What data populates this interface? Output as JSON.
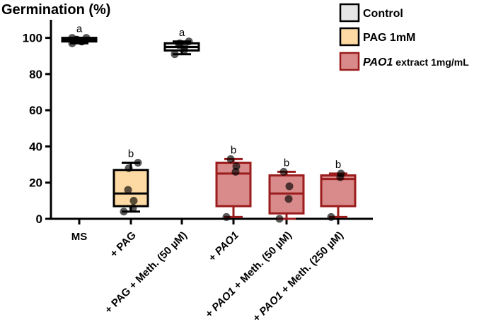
{
  "chart_data": {
    "type": "box",
    "ylabel": "Germination (%)",
    "ylim": [
      0,
      110
    ],
    "yticks": [
      0,
      20,
      40,
      60,
      80,
      100
    ],
    "categories": [
      {
        "label": "MS",
        "italic": ""
      },
      {
        "label": "+ PAG",
        "italic": ""
      },
      {
        "label": "+ PAG + Meth. (50 µM)",
        "italic": ""
      },
      {
        "label": "",
        "prefix": "+ ",
        "italic": "PAO1",
        "suffix": ""
      },
      {
        "label": "",
        "prefix": "+ ",
        "italic": "PAO1",
        "suffix": " + Meth. (50 µM)"
      },
      {
        "label": "",
        "prefix": "+ ",
        "italic": "PAO1",
        "suffix": " + Meth. (250 µM)"
      }
    ],
    "series": [
      {
        "name": "Control",
        "color": "#e6e6e6",
        "edge": "#000000"
      },
      {
        "name": "PAG 1mM",
        "color": "#fdd9a3",
        "edge": "#000000"
      },
      {
        "name": "PAO1",
        "name_suffix": " extract 1mg/mL",
        "name_italic": true,
        "color": "#d98a8a",
        "edge": "#9b1c1c"
      }
    ],
    "groups": [
      {
        "category": 0,
        "series": 0,
        "min": 97,
        "q1": 98,
        "median": 99,
        "q3": 100,
        "max": 100,
        "points": [
          97,
          98,
          98,
          99,
          99,
          100,
          100
        ],
        "letter": "a"
      },
      {
        "category": 1,
        "series": 1,
        "min": 4,
        "q1": 7,
        "median": 14,
        "q3": 27,
        "max": 31,
        "points": [
          4,
          6,
          10,
          16,
          28,
          31
        ],
        "letter": "b"
      },
      {
        "category": 2,
        "series": 0,
        "min": 91,
        "q1": 93,
        "median": 95,
        "q3": 97,
        "max": 98,
        "points": [
          91,
          93,
          95,
          96,
          97,
          98
        ],
        "letter": "a"
      },
      {
        "category": 3,
        "series": 2,
        "min": 1,
        "q1": 7,
        "median": 25,
        "q3": 31,
        "max": 33,
        "points": [
          1,
          26,
          29,
          33
        ],
        "letter": "b"
      },
      {
        "category": 4,
        "series": 2,
        "min": 0,
        "q1": 3,
        "median": 14,
        "q3": 24,
        "max": 26,
        "points": [
          0,
          11,
          18,
          26
        ],
        "letter": "b"
      },
      {
        "category": 5,
        "series": 2,
        "min": 1,
        "q1": 7,
        "median": 22,
        "q3": 24,
        "max": 25,
        "points": [
          1,
          23,
          25
        ],
        "letter": "b"
      }
    ],
    "legend_position": "top-right",
    "grid": false
  }
}
